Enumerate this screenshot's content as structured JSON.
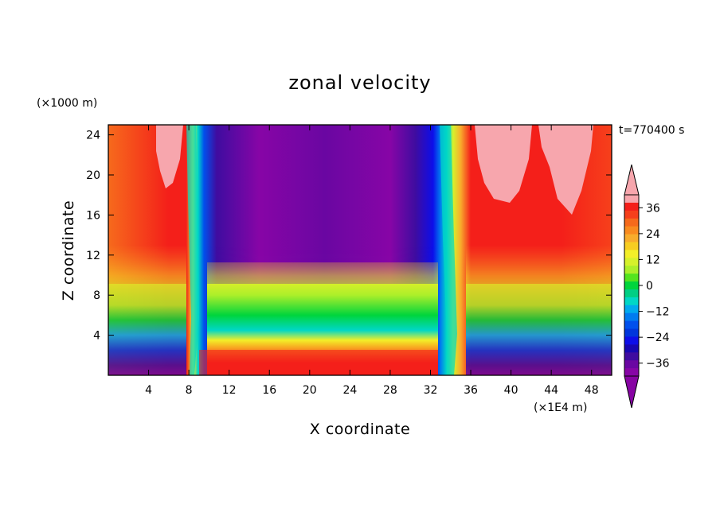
{
  "chart_data": {
    "type": "heatmap",
    "title": "zonal velocity",
    "xlabel": "X coordinate",
    "ylabel": "Z coordinate",
    "x_unit": "(×1E4 m)",
    "y_unit": "(×1000 m)",
    "time_label": "t=770400 s",
    "xlim": [
      0,
      50
    ],
    "ylim": [
      0,
      25
    ],
    "x_ticks": [
      4,
      8,
      12,
      16,
      20,
      24,
      28,
      32,
      36,
      40,
      44,
      48
    ],
    "y_ticks": [
      4,
      8,
      12,
      16,
      20,
      24
    ],
    "x_tick_labels": [
      "4",
      "8",
      "12",
      "16",
      "20",
      "24",
      "28",
      "32",
      "36",
      "40",
      "44",
      "48"
    ],
    "y_tick_labels": [
      "4",
      "8",
      "12",
      "16",
      "20",
      "24"
    ],
    "colorbar": {
      "levels": [
        -42,
        -39,
        -36,
        -33,
        -30,
        -27,
        -24,
        -21,
        -18,
        -15,
        -12,
        -9,
        -6,
        -3,
        0,
        3,
        6,
        9,
        12,
        15,
        18,
        21,
        24,
        27,
        30,
        33,
        36,
        39,
        42
      ],
      "tick_values": [
        36,
        24,
        12,
        0,
        -12,
        -24,
        -36
      ],
      "tick_labels": [
        "36",
        "24",
        "12",
        "0",
        "−12",
        "−24",
        "−36"
      ],
      "colors": [
        "#f7a6ad",
        "#f41f1a",
        "#f6401b",
        "#f66a1c",
        "#f98b1f",
        "#f8ac2c",
        "#f7cd21",
        "#f3ef28",
        "#d6f12b",
        "#acef2a",
        "#54e41f",
        "#00d53c",
        "#00cf84",
        "#00d7c6",
        "#00aaee",
        "#007bf0",
        "#0050ed",
        "#0036dc",
        "#0d0ee9",
        "#1707b2",
        "#3f0ca0",
        "#6a06a2",
        "#8705a6"
      ],
      "under_color": "#8704a3",
      "over_color": "#f7a6ad"
    },
    "grid": false
  }
}
